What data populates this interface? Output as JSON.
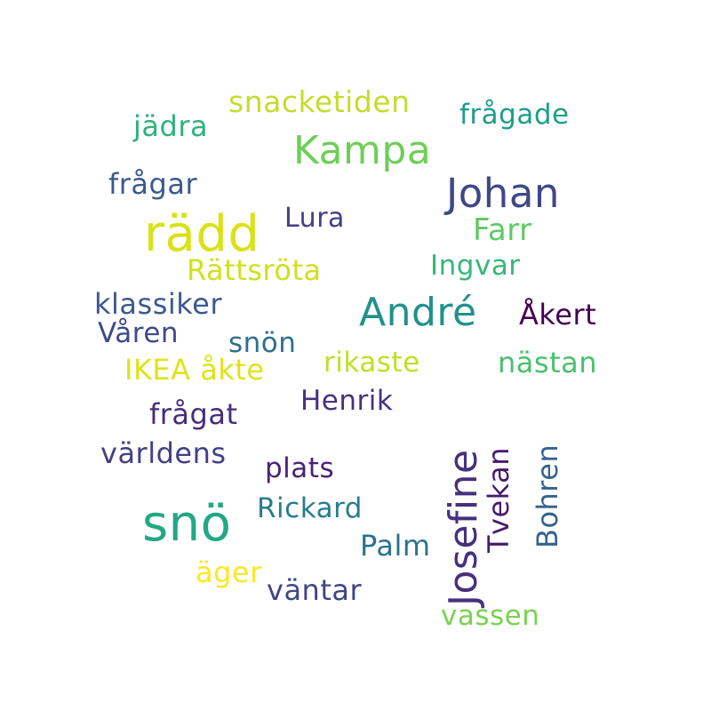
{
  "words": [
    {
      "text": "snacketiden",
      "color": "#c4dd2d"
    },
    {
      "text": "frågade",
      "color": "#1f9e89"
    },
    {
      "text": "jädra",
      "color": "#2eb27c"
    },
    {
      "text": "Kampa",
      "color": "#6ece58"
    },
    {
      "text": "frågar",
      "color": "#3b5a8e"
    },
    {
      "text": "Johan",
      "color": "#3f4788"
    },
    {
      "text": "Lura",
      "color": "#433e85"
    },
    {
      "text": "rädd",
      "color": "#d8e219"
    },
    {
      "text": "Farr",
      "color": "#5ec962"
    },
    {
      "text": "Ingvar",
      "color": "#35b779"
    },
    {
      "text": "Rättsröta",
      "color": "#d0e11c"
    },
    {
      "text": "klassiker",
      "color": "#3b5a8e"
    },
    {
      "text": "André",
      "color": "#21918c"
    },
    {
      "text": "Åkert",
      "color": "#440154"
    },
    {
      "text": "Våren",
      "color": "#3e4989"
    },
    {
      "text": "snön",
      "color": "#2d708e"
    },
    {
      "text": "IKEA åkte",
      "color": "#e0e318"
    },
    {
      "text": "rikaste",
      "color": "#c0df25"
    },
    {
      "text": "nästan",
      "color": "#4ac16d"
    },
    {
      "text": "Henrik",
      "color": "#46337e"
    },
    {
      "text": "frågat",
      "color": "#472d7b"
    },
    {
      "text": "världens",
      "color": "#424086"
    },
    {
      "text": "plats",
      "color": "#482475"
    },
    {
      "text": "Rickard",
      "color": "#287d8e"
    },
    {
      "text": "snö",
      "color": "#22a884"
    },
    {
      "text": "Palm",
      "color": "#2c728e"
    },
    {
      "text": "äger",
      "color": "#fde725"
    },
    {
      "text": "väntar",
      "color": "#414487"
    },
    {
      "text": "vassen",
      "color": "#7ad151"
    },
    {
      "text": "Josefine",
      "color": "#46307e",
      "vertical": true
    },
    {
      "text": "Tvekan",
      "color": "#481b6d",
      "vertical": true
    },
    {
      "text": "Bohren",
      "color": "#33638d",
      "vertical": true
    }
  ]
}
